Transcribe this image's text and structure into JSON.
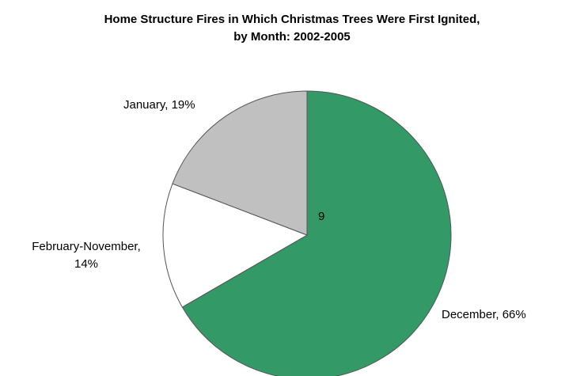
{
  "chart_data": {
    "type": "pie",
    "title": "Home Structure Fires in Which Christmas Trees Were First Ignited,",
    "subtitle": "by Month:  2002-2005",
    "center_note": "9",
    "slices": [
      {
        "label": "December, 66%",
        "value": 66,
        "color": "#339966"
      },
      {
        "label": "February-November,",
        "label_line2": "14%",
        "value": 14,
        "color": "#ffffff"
      },
      {
        "label": "January, 19%",
        "value": 19,
        "color": "#c0c0c0"
      }
    ],
    "start_angle_deg": 0,
    "direction": "clockwise",
    "legend": "none",
    "outline_color": "#555555"
  }
}
